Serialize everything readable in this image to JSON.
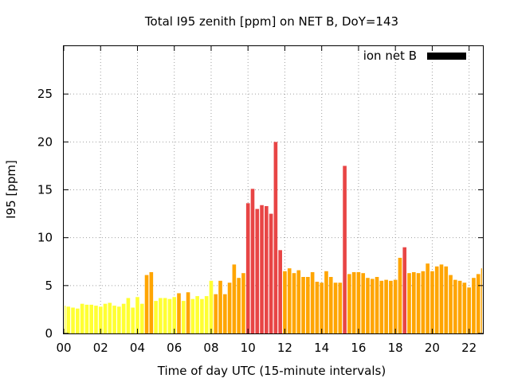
{
  "chart_data": {
    "type": "bar",
    "title": "Total I95 zenith [ppm] on NET B, DoY=143",
    "xlabel": "Time of day UTC (15-minute intervals)",
    "ylabel": "I95 [ppm]",
    "xlim": [
      0,
      22.75
    ],
    "ylim": [
      0,
      30
    ],
    "x_ticks": [
      "00",
      "02",
      "04",
      "06",
      "08",
      "10",
      "12",
      "14",
      "16",
      "18",
      "20",
      "22"
    ],
    "y_ticks": [
      "0",
      "5",
      "10",
      "15",
      "20",
      "25"
    ],
    "grid": true,
    "legend": {
      "position": "top-right",
      "label": "ion net B",
      "color": "#000000"
    },
    "bar_width_hours": 0.2,
    "colors": {
      "low": "#ffff33",
      "medium": "#ffa500",
      "high": "#e84545"
    },
    "series": [
      {
        "x": [
          0.0,
          0.25,
          0.5,
          0.75,
          1.0,
          1.25,
          1.5,
          1.75,
          2.0,
          2.25,
          2.5,
          2.75,
          3.0,
          3.25,
          3.5,
          3.75,
          4.0,
          4.25,
          4.5,
          4.75,
          5.0,
          5.25,
          5.5,
          5.75,
          6.0,
          6.25,
          6.5,
          6.75,
          7.0,
          7.25,
          7.5,
          7.75,
          8.0,
          8.25,
          8.5,
          8.75,
          9.0,
          9.25,
          9.5,
          9.75,
          10.0,
          10.25,
          10.5,
          10.75,
          11.0,
          11.25,
          11.5,
          11.75,
          12.0,
          12.25,
          12.5,
          12.75,
          13.0,
          13.25,
          13.5,
          13.75,
          14.0,
          14.25,
          14.5,
          14.75,
          15.0,
          15.25,
          15.5,
          15.75,
          16.0,
          16.25,
          16.5,
          16.75,
          17.0,
          17.25,
          17.5,
          17.75,
          18.0,
          18.25,
          18.5,
          18.75,
          19.0,
          19.25,
          19.5,
          19.75,
          20.0,
          20.25,
          20.5,
          20.75,
          21.0,
          21.25,
          21.5,
          21.75,
          22.0,
          22.25,
          22.5,
          22.75
        ],
        "values": [
          2.9,
          2.8,
          2.7,
          2.6,
          3.1,
          3.0,
          3.0,
          2.9,
          2.8,
          3.1,
          3.2,
          2.9,
          2.8,
          3.1,
          3.7,
          2.7,
          3.8,
          3.1,
          6.1,
          6.4,
          3.4,
          3.7,
          3.7,
          3.6,
          3.8,
          4.2,
          3.4,
          4.3,
          3.6,
          3.9,
          3.6,
          3.9,
          5.5,
          4.1,
          5.5,
          4.1,
          5.3,
          7.2,
          5.8,
          6.3,
          13.6,
          15.1,
          13.0,
          13.4,
          13.3,
          12.5,
          20.0,
          8.7,
          6.5,
          6.8,
          6.3,
          6.6,
          5.9,
          5.9,
          6.4,
          5.4,
          5.3,
          6.5,
          5.9,
          5.3,
          5.3,
          17.5,
          6.2,
          6.4,
          6.4,
          6.3,
          5.8,
          5.7,
          5.9,
          5.5,
          5.6,
          5.5,
          5.6,
          7.9,
          9.0,
          6.3,
          6.4,
          6.3,
          6.5,
          7.3,
          6.5,
          7.0,
          7.2,
          7.0,
          6.1,
          5.6,
          5.5,
          5.3,
          4.8,
          5.8,
          6.2,
          6.8
        ],
        "levels": [
          "low",
          "low",
          "low",
          "low",
          "low",
          "low",
          "low",
          "low",
          "low",
          "low",
          "low",
          "low",
          "low",
          "low",
          "low",
          "low",
          "low",
          "low",
          "medium",
          "medium",
          "low",
          "low",
          "low",
          "low",
          "low",
          "medium",
          "low",
          "medium",
          "low",
          "low",
          "low",
          "low",
          "low",
          "medium",
          "medium",
          "medium",
          "medium",
          "medium",
          "medium",
          "medium",
          "high",
          "high",
          "high",
          "high",
          "high",
          "high",
          "high",
          "high",
          "medium",
          "medium",
          "medium",
          "medium",
          "medium",
          "medium",
          "medium",
          "medium",
          "medium",
          "medium",
          "medium",
          "medium",
          "medium",
          "high",
          "medium",
          "medium",
          "medium",
          "medium",
          "medium",
          "medium",
          "medium",
          "medium",
          "medium",
          "medium",
          "medium",
          "medium",
          "high",
          "medium",
          "medium",
          "medium",
          "medium",
          "medium",
          "medium",
          "medium",
          "medium",
          "medium",
          "medium",
          "medium",
          "medium",
          "medium",
          "medium",
          "medium",
          "medium",
          "medium"
        ]
      }
    ]
  }
}
